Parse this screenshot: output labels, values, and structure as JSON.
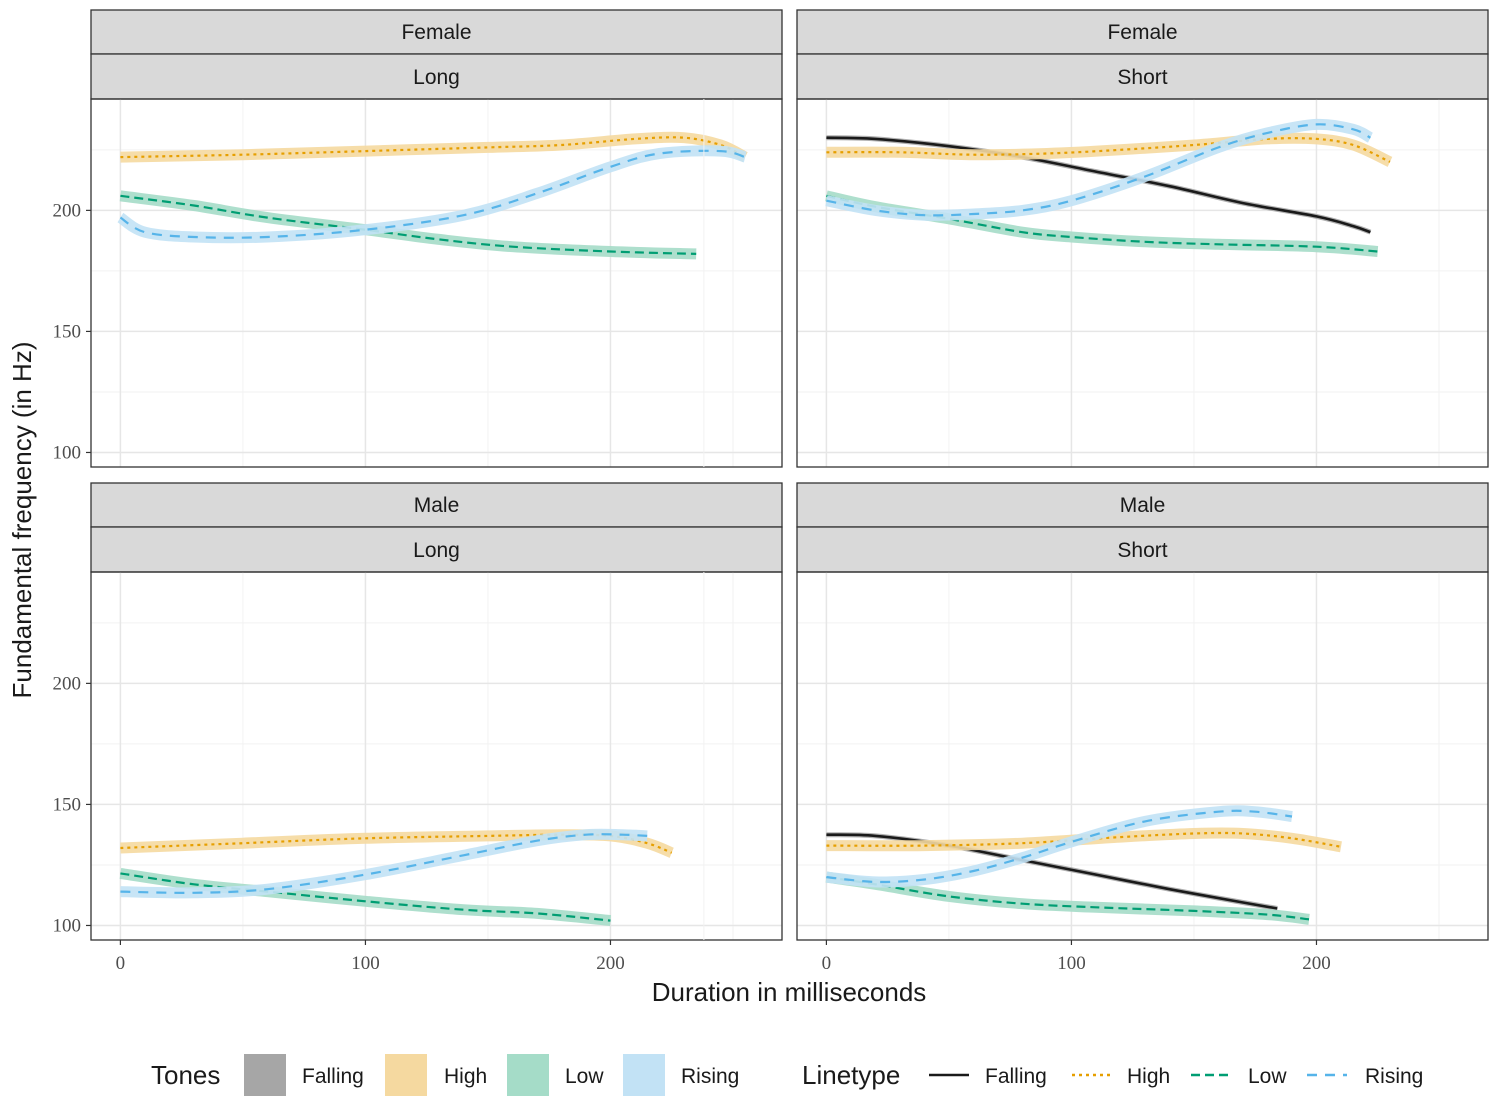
{
  "chart_data": {
    "type": "line",
    "xlabel": "Duration in milliseconds",
    "ylabel": "Fundamental frequency (in Hz)",
    "xlim": [
      -12,
      270
    ],
    "ylim": [
      94,
      246
    ],
    "x_ticks": [
      "0",
      "100",
      "200"
    ],
    "x_tick_values": [
      0,
      100,
      200
    ],
    "y_ticks": [
      "100",
      "150",
      "200"
    ],
    "y_tick_values": [
      100,
      150,
      200
    ],
    "colors": {
      "Falling": "#1a1a1a",
      "High": "#e69f00",
      "Low": "#009e73",
      "Rising": "#56b4e9"
    },
    "ribbon_colors": {
      "Falling": "#a6a6a6",
      "High": "#f5d9a0",
      "Low": "#a5dcc8",
      "Rising": "#c2e2f5"
    },
    "legend": {
      "tones_title": "Tones",
      "linetype_title": "Linetype",
      "items": [
        "Falling",
        "High",
        "Low",
        "Rising"
      ],
      "position": "bottom"
    },
    "panels": [
      {
        "id": "female-long",
        "strip_top": "Female",
        "strip_bottom": "Long",
        "series": [
          {
            "name": "High",
            "x": [
              0,
              50,
              100,
              150,
              180,
              210,
              230,
              245,
              255
            ],
            "y": [
              222,
              223,
              224.5,
              226,
              227,
              229.5,
              230,
              227,
              222
            ]
          },
          {
            "name": "Low",
            "x": [
              0,
              30,
              60,
              100,
              130,
              160,
              200,
              235
            ],
            "y": [
              206,
              202,
              197,
              192,
              188,
              185,
              183,
              182
            ]
          },
          {
            "name": "Rising",
            "x": [
              0,
              10,
              30,
              60,
              100,
              140,
              170,
              200,
              220,
              245,
              255
            ],
            "y": [
              197,
              191,
              189,
              189,
              192,
              198,
              207,
              218,
              223.5,
              224.5,
              222
            ]
          }
        ]
      },
      {
        "id": "female-short",
        "strip_top": "Female",
        "strip_bottom": "Short",
        "series": [
          {
            "name": "Falling",
            "x": [
              0,
              20,
              50,
              80,
              110,
              140,
              170,
              200,
              215,
              222
            ],
            "y": [
              230,
              229.5,
              226.5,
              222,
              216,
              210,
              203,
              197.5,
              193.5,
              191
            ]
          },
          {
            "name": "High",
            "x": [
              0,
              30,
              60,
              90,
              120,
              150,
              180,
              200,
              215,
              230
            ],
            "y": [
              224,
              224,
              223,
              223.5,
              225,
              227,
              229.5,
              229.5,
              227,
              220
            ]
          },
          {
            "name": "Low",
            "x": [
              0,
              20,
              50,
              80,
              100,
              130,
              160,
              200,
              225
            ],
            "y": [
              206,
              201.5,
              196.5,
              191,
              189,
              187,
              186,
              185,
              183
            ]
          },
          {
            "name": "Rising",
            "x": [
              0,
              20,
              40,
              60,
              80,
              100,
              130,
              160,
              180,
              200,
              215,
              222
            ],
            "y": [
              204,
              200,
              198,
              198.5,
              200,
              204,
              214,
              226,
              232,
              235.5,
              233.5,
              230
            ]
          }
        ]
      },
      {
        "id": "male-long",
        "strip_top": "Male",
        "strip_bottom": "Long",
        "series": [
          {
            "name": "High",
            "x": [
              0,
              50,
              100,
              150,
              180,
              200,
              215,
              225
            ],
            "y": [
              132,
              134,
              136,
              137,
              137.5,
              137,
              134,
              130
            ]
          },
          {
            "name": "Low",
            "x": [
              0,
              30,
              60,
              100,
              140,
              170,
              200
            ],
            "y": [
              121.5,
              117,
              114,
              110,
              106.5,
              105,
              102
            ]
          },
          {
            "name": "Rising",
            "x": [
              0,
              30,
              60,
              100,
              140,
              170,
              190,
              205,
              215
            ],
            "y": [
              114,
              113.5,
              115,
              121,
              129,
              135,
              137.5,
              137.5,
              137
            ]
          }
        ]
      },
      {
        "id": "male-short",
        "strip_top": "Male",
        "strip_bottom": "Short",
        "series": [
          {
            "name": "Falling",
            "x": [
              0,
              20,
              50,
              80,
              110,
              140,
              170,
              184
            ],
            "y": [
              137.5,
              137,
              133,
              127,
              121,
              115,
              109.5,
              107
            ]
          },
          {
            "name": "High",
            "x": [
              0,
              40,
              80,
              120,
              150,
              170,
              190,
              210
            ],
            "y": [
              133,
              133,
              134,
              136.5,
              138,
              138,
              136,
              132.5
            ]
          },
          {
            "name": "Low",
            "x": [
              0,
              20,
              50,
              80,
              110,
              150,
              180,
              197
            ],
            "y": [
              120,
              117,
              112,
              109,
              107.5,
              106,
              104.5,
              102.5
            ]
          },
          {
            "name": "Rising",
            "x": [
              0,
              20,
              40,
              60,
              80,
              100,
              130,
              160,
              175,
              190
            ],
            "y": [
              120,
              118,
              119,
              122.5,
              128,
              134.5,
              143,
              147,
              147,
              145
            ]
          }
        ]
      }
    ]
  }
}
